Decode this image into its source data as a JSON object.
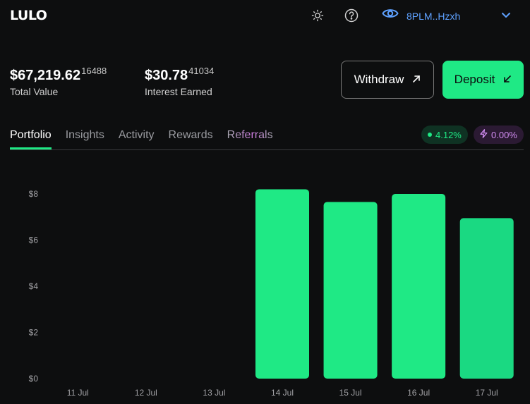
{
  "header": {
    "logo": "LULO",
    "theme_icon": "sun-icon",
    "help_icon": "question-circle-icon",
    "wallet_icon": "eye-icon",
    "wallet_address": "8PLM..Hzxh",
    "menu_icon": "chevron-down-icon"
  },
  "summary": {
    "total_value_main": "$67,219.62",
    "total_value_sub": "16488",
    "total_value_label": "Total Value",
    "interest_main": "$30.78",
    "interest_sub": "41034",
    "interest_label": "Interest Earned"
  },
  "actions": {
    "withdraw_label": "Withdraw",
    "withdraw_icon": "arrow-up-right-icon",
    "deposit_label": "Deposit",
    "deposit_icon": "arrow-down-left-icon"
  },
  "tabs": [
    {
      "label": "Portfolio",
      "active": true
    },
    {
      "label": "Insights",
      "active": false
    },
    {
      "label": "Activity",
      "active": false
    },
    {
      "label": "Rewards",
      "active": false
    },
    {
      "label": "Referrals",
      "active": false
    }
  ],
  "badges": {
    "apy": "4.12%",
    "boost": "0.00%",
    "boost_icon": "lightning-icon"
  },
  "colors": {
    "accent": "#1fe985",
    "background": "#0d0e0f",
    "wallet": "#5ea1ff",
    "boost": "#d18cf0"
  },
  "chart_data": {
    "type": "bar",
    "categories": [
      "11 Jul",
      "12 Jul",
      "13 Jul",
      "14 Jul",
      "15 Jul",
      "16 Jul",
      "17 Jul"
    ],
    "values": [
      0,
      0,
      0,
      8.2,
      7.65,
      8.0,
      6.95
    ],
    "y_ticks": [
      "$0",
      "$2",
      "$4",
      "$6",
      "$8"
    ],
    "y_tick_values": [
      0,
      2,
      4,
      6,
      8
    ],
    "ylim": [
      0,
      8.2
    ],
    "grid": false,
    "color": "#1fe985"
  }
}
